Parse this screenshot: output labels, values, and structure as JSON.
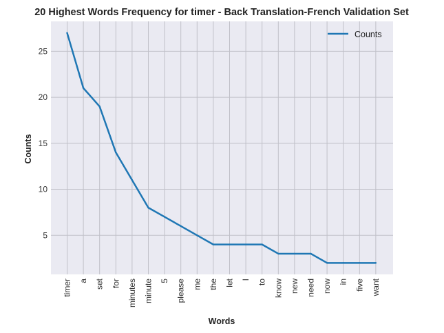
{
  "chart_data": {
    "type": "line",
    "title": "20 Highest Words Frequency for timer - Back Translation-French Validation Set",
    "xlabel": "Words",
    "ylabel": "Counts",
    "categories": [
      "timer",
      "a",
      "set",
      "for",
      "minutes",
      "minute",
      "5",
      "please",
      "me",
      "the",
      "let",
      "I",
      "to",
      "know",
      "new",
      "need",
      "now",
      "in",
      "five",
      "want"
    ],
    "series": [
      {
        "name": "Counts",
        "color": "#1f77b4",
        "values": [
          27,
          21,
          19,
          14,
          11,
          8,
          7,
          6,
          5,
          4,
          4,
          4,
          4,
          3,
          3,
          3,
          2,
          2,
          2,
          2
        ]
      }
    ],
    "yticks": [
      5,
      10,
      15,
      20,
      25
    ],
    "ylim": [
      0.75,
      28.25
    ],
    "grid": true,
    "legend_position": "top-right",
    "background_color": "#eaeaf2",
    "grid_color": "#c0c0c8"
  }
}
